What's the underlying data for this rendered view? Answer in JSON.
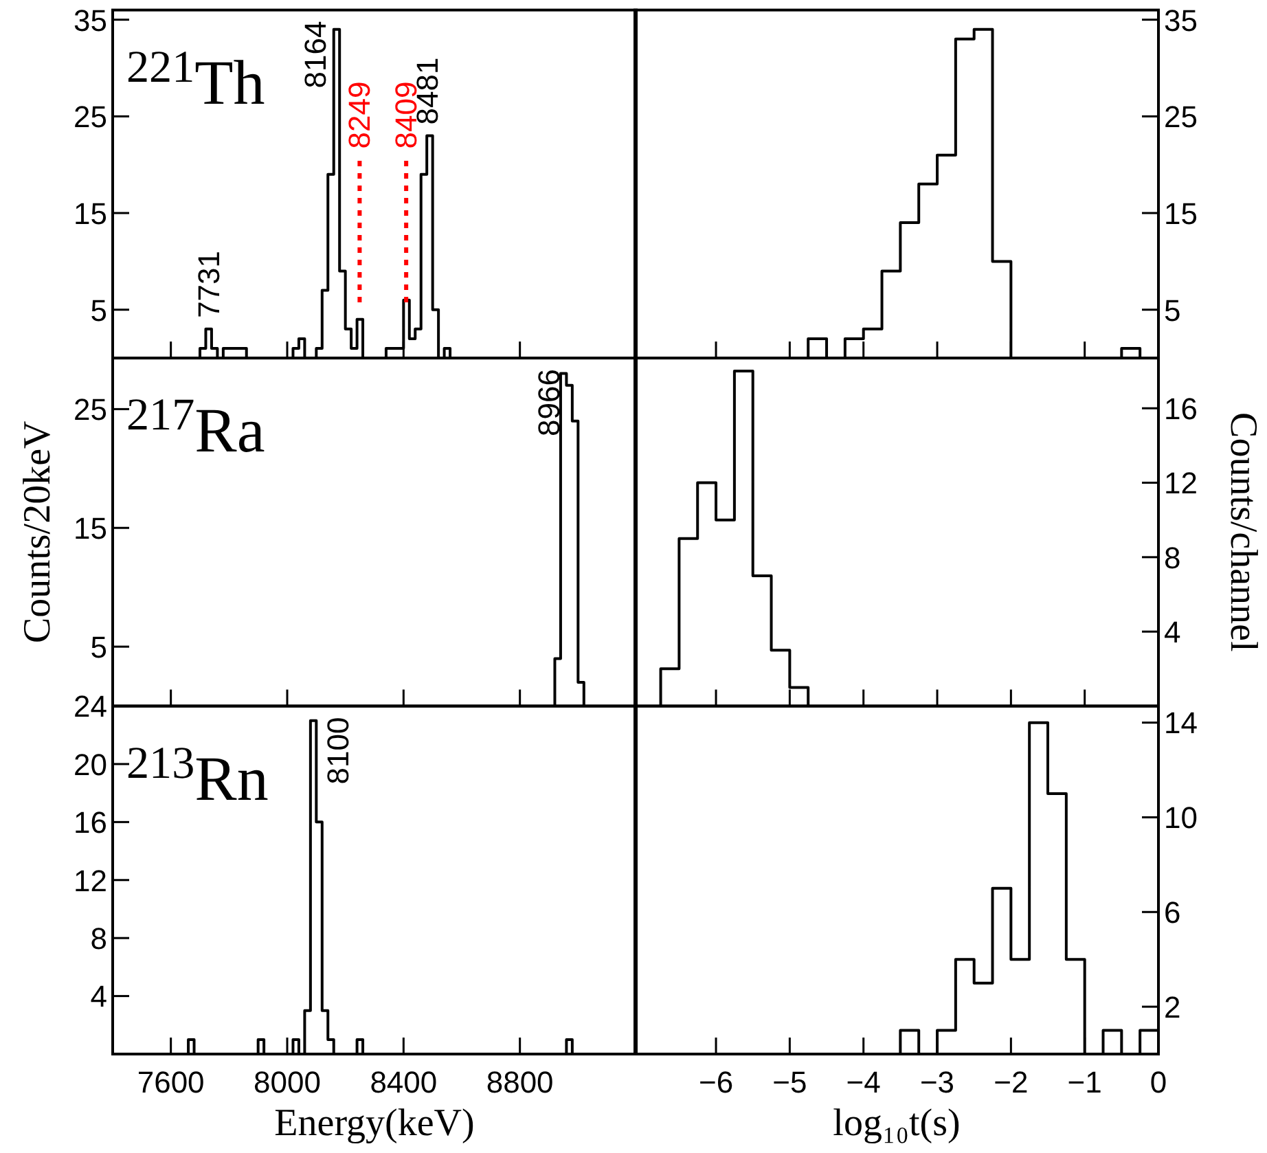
{
  "chart_data": [
    {
      "type": "histogram",
      "title": "$^{221}$Th",
      "color": "#000000",
      "xlim": [
        7400,
        9200
      ],
      "xticks": [
        7600,
        8000,
        8400,
        8800
      ],
      "ylim": [
        0,
        36
      ],
      "yticks": [
        5,
        15,
        25,
        35
      ],
      "tick_labels": "y",
      "bins": [
        7700,
        7720,
        7740,
        7760,
        7780,
        7800,
        7820,
        7840,
        7860,
        7880,
        7900,
        7920,
        7940,
        7960,
        7980,
        8000,
        8020,
        8040,
        8060,
        8080,
        8100,
        8120,
        8140,
        8160,
        8180,
        8200,
        8220,
        8240,
        8260,
        8280,
        8300,
        8320,
        8340,
        8360,
        8380,
        8400,
        8420,
        8440,
        8460,
        8480,
        8500,
        8520,
        8540,
        8560
      ],
      "values": [
        1,
        3,
        1,
        0,
        1,
        1,
        1,
        1,
        0,
        0,
        0,
        0,
        0,
        0,
        0,
        0,
        1,
        2,
        0,
        0,
        1,
        7,
        19,
        34,
        9,
        3,
        1,
        4,
        0,
        0,
        0,
        0,
        1,
        1,
        1,
        6,
        2,
        3,
        19,
        23,
        5,
        0,
        1
      ],
      "annotations": [
        {
          "text": "7731",
          "x": 7731,
          "y": 3
        },
        {
          "text": "8164",
          "x": 8164,
          "y": 34
        },
        {
          "text": "8481",
          "x": 8481,
          "y": 23
        }
      ],
      "ref_lines": [
        {
          "axis": "x",
          "value": 8249,
          "label": "8249",
          "color": "#ff0000",
          "line_style": "dotted"
        },
        {
          "axis": "x",
          "value": 8409,
          "label": "8409",
          "color": "#ff0000",
          "line_style": "dotted"
        }
      ]
    },
    {
      "type": "histogram",
      "color": "#000000",
      "xlim": [
        -7.1,
        0
      ],
      "xticks": [
        -6,
        -5,
        -4,
        -3,
        -2,
        -1,
        0
      ],
      "ylim": [
        0,
        36
      ],
      "yticks": [
        5,
        15,
        25,
        35
      ],
      "tick_labels": "y",
      "bins": [
        -4.75,
        -4.5,
        -4.25,
        -4,
        -3.75,
        -3.5,
        -3.25,
        -3,
        -2.75,
        -2.5,
        -2.25,
        -2,
        -1.75,
        -1.5,
        -1.25,
        -1,
        -0.75,
        -0.5,
        -0.25
      ],
      "values": [
        2,
        0,
        2,
        3,
        9,
        14,
        18,
        21,
        33,
        34,
        10,
        0,
        0,
        0,
        0,
        0,
        0,
        1
      ]
    },
    {
      "type": "histogram",
      "title": "$^{217}$Ra",
      "ylabel": "Counts/20keV",
      "color": "#000000",
      "xlim": [
        7400,
        9200
      ],
      "xticks": [
        7600,
        8000,
        8400,
        8800
      ],
      "ylim": [
        0,
        29.3
      ],
      "yticks": [
        5,
        15,
        25
      ],
      "tick_labels": "y",
      "bins": [
        8920,
        8940,
        8960,
        8980,
        9000,
        9020
      ],
      "values": [
        4,
        28,
        27,
        24,
        2
      ],
      "annotations": [
        {
          "text": "8966",
          "x": 8966,
          "y": 28
        }
      ]
    },
    {
      "type": "histogram",
      "ylabel": "Counts/channel",
      "color": "#000000",
      "xlim": [
        -7.1,
        0
      ],
      "xticks": [
        -6,
        -5,
        -4,
        -3,
        -2,
        -1,
        0
      ],
      "ylim": [
        0,
        18.7
      ],
      "yticks": [
        4,
        8,
        12,
        16
      ],
      "tick_labels": "y",
      "bins": [
        -6.75,
        -6.5,
        -6.25,
        -6,
        -5.75,
        -5.5,
        -5.25,
        -5,
        -4.75
      ],
      "values": [
        2,
        9,
        12,
        10,
        18,
        7,
        3,
        1
      ]
    },
    {
      "type": "histogram",
      "title": "$^{213}$Rn",
      "xlabel": "Energy(keV)",
      "color": "#000000",
      "xlim": [
        7400,
        9200
      ],
      "xticks": [
        7600,
        8000,
        8400,
        8800
      ],
      "ylim": [
        0,
        24
      ],
      "yticks": [
        4,
        8,
        12,
        16,
        20,
        24
      ],
      "bins": [
        7660,
        7680,
        7700,
        7720,
        7740,
        7760,
        7780,
        7800,
        7820,
        7840,
        7860,
        7880,
        7900,
        7920,
        7940,
        7960,
        7980,
        8000,
        8020,
        8040,
        8060,
        8080,
        8100,
        8120,
        8140,
        8160,
        8180,
        8200,
        8220,
        8240,
        8260,
        8280,
        8300,
        8320,
        8340,
        8360,
        8380,
        8400,
        8420,
        8440,
        8460,
        8480,
        8500,
        8520,
        8540,
        8560,
        8580,
        8600,
        8620,
        8640,
        8660,
        8680,
        8700,
        8720,
        8740,
        8760,
        8780,
        8800,
        8820,
        8840,
        8860,
        8880,
        8900,
        8920,
        8940,
        8960,
        8980
      ],
      "values": [
        1,
        0,
        0,
        0,
        0,
        0,
        0,
        0,
        0,
        0,
        0,
        0,
        1,
        0,
        0,
        0,
        0,
        0,
        1,
        0,
        3,
        23,
        16,
        3,
        1,
        0,
        0,
        0,
        0,
        1,
        0,
        0,
        0,
        0,
        0,
        0,
        0,
        0,
        0,
        0,
        0,
        0,
        0,
        0,
        0,
        0,
        0,
        0,
        0,
        0,
        0,
        0,
        0,
        0,
        0,
        0,
        0,
        0,
        0,
        0,
        0,
        0,
        0,
        0,
        0,
        1
      ],
      "annotations": [
        {
          "text": "8100",
          "x": 8100,
          "y": 23
        }
      ]
    },
    {
      "type": "histogram",
      "xlabel": "log₁₀t(s)",
      "color": "#000000",
      "xlim": [
        -7.1,
        0
      ],
      "xticks": [
        {
          "value": -6,
          "label": "−6"
        },
        {
          "value": -5,
          "label": "−5"
        },
        {
          "value": -4,
          "label": "−4"
        },
        {
          "value": -3,
          "label": "−3"
        },
        {
          "value": -2,
          "label": "−2"
        },
        {
          "value": -1,
          "label": "−1"
        },
        0
      ],
      "ylim": [
        0,
        14.7
      ],
      "yticks": [
        2,
        6,
        10,
        14
      ],
      "bins": [
        -3.5,
        -3.25,
        -3,
        -2.75,
        -2.5,
        -2.25,
        -2,
        -1.75,
        -1.5,
        -1.25,
        -1,
        -0.75,
        -0.5,
        -0.25,
        0
      ],
      "values": [
        1,
        0,
        1,
        4,
        3,
        7,
        4,
        14,
        11,
        4,
        0,
        1,
        0,
        1
      ]
    }
  ]
}
